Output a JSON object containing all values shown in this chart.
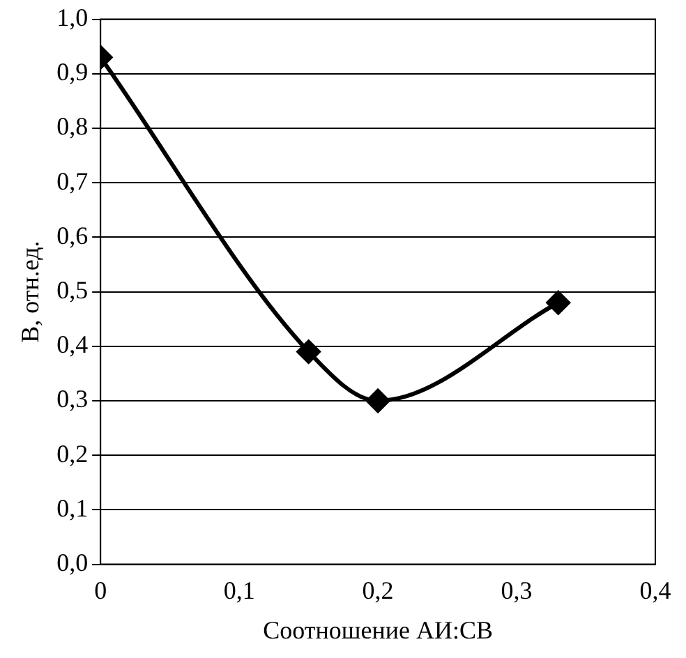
{
  "chart_data": {
    "type": "line",
    "xlabel": "Соотношение АИ:СВ",
    "ylabel": "B, отн.ед.",
    "x": [
      0,
      0.15,
      0.2,
      0.33
    ],
    "series": [
      {
        "color": "#000000",
        "values": [
          0.93,
          0.39,
          0.3,
          0.48
        ]
      }
    ],
    "xlim": [
      0,
      0.4
    ],
    "xticks": [
      0,
      {
        "value": 0.1,
        "label": "0,1"
      },
      {
        "value": 0.2,
        "label": "0,2"
      },
      {
        "value": 0.3,
        "label": "0,3"
      },
      {
        "value": 0.4,
        "label": "0,4"
      }
    ],
    "ylim": [
      0,
      1
    ],
    "yticks": [
      {
        "value": 0,
        "label": "0,0"
      },
      {
        "value": 0.1,
        "label": "0,1"
      },
      {
        "value": 0.2,
        "label": "0,2"
      },
      {
        "value": 0.3,
        "label": "0,3"
      },
      {
        "value": 0.4,
        "label": "0,4"
      },
      {
        "value": 0.5,
        "label": "0,5"
      },
      {
        "value": 0.6,
        "label": "0,6"
      },
      {
        "value": 0.7,
        "label": "0,7"
      },
      {
        "value": 0.8,
        "label": "0,8"
      },
      {
        "value": 0.9,
        "label": "0,9"
      },
      {
        "value": 1,
        "label": "1,0"
      }
    ],
    "grid": "y",
    "legend": false,
    "marker": "diamond",
    "line_style": "solid"
  }
}
